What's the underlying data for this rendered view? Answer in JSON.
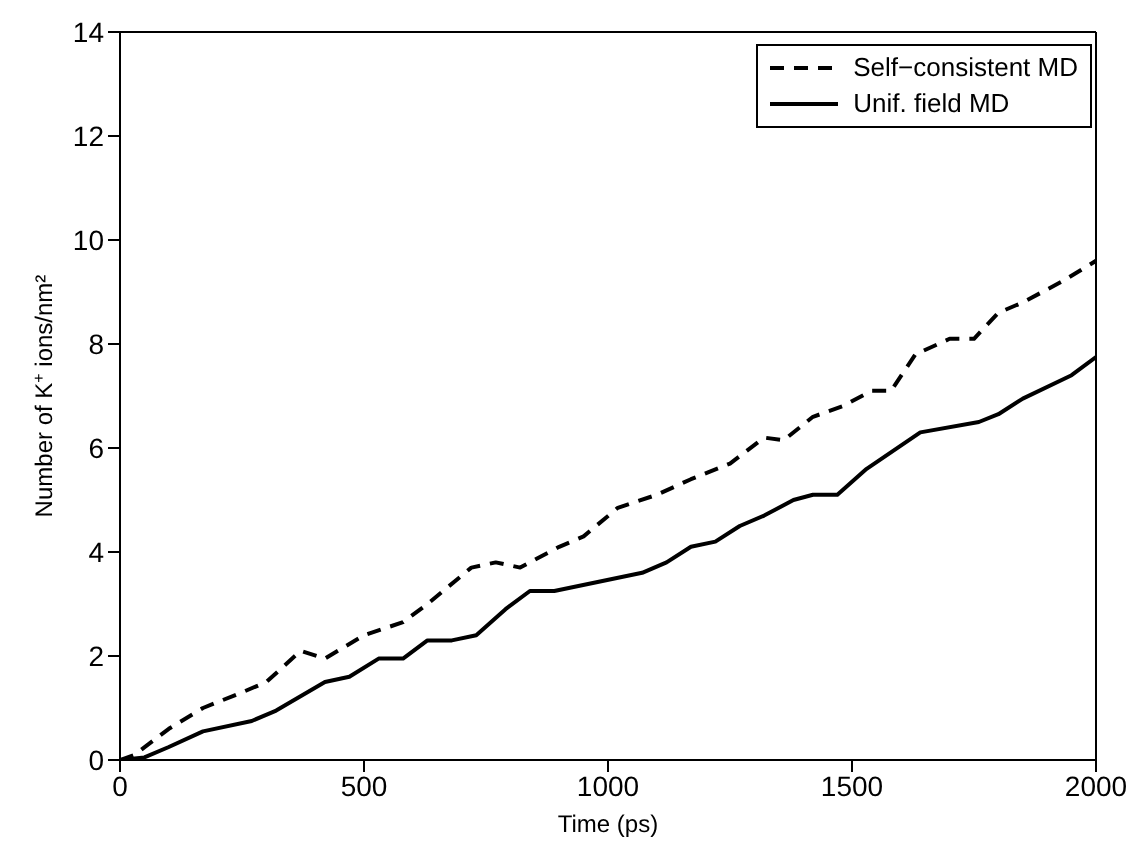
{
  "chart_data": {
    "type": "line",
    "xlabel": "Time (ps)",
    "ylabel": "Number of K$^{+}$ ions/nm²",
    "xlim": [
      0,
      2000
    ],
    "xticks": [
      0,
      500,
      1000,
      1500,
      2000
    ],
    "ylim": [
      0,
      14
    ],
    "yticks": [
      0,
      2,
      4,
      6,
      8,
      10,
      12,
      14
    ],
    "legend": "top right",
    "marker": "none",
    "series": [
      {
        "name": "Self−consistent MD",
        "color": "#000000",
        "line_style": "dashed",
        "x": [
          0,
          30,
          100,
          170,
          250,
          300,
          370,
          420,
          500,
          580,
          630,
          720,
          770,
          820,
          900,
          950,
          1020,
          1100,
          1170,
          1250,
          1320,
          1360,
          1420,
          1480,
          1540,
          1580,
          1630,
          1700,
          1750,
          1800,
          1850,
          1930,
          2000
        ],
        "values": [
          0,
          0.1,
          0.6,
          1.0,
          1.3,
          1.5,
          2.1,
          1.95,
          2.4,
          2.65,
          3.0,
          3.7,
          3.8,
          3.7,
          4.1,
          4.3,
          4.85,
          5.1,
          5.4,
          5.7,
          6.2,
          6.15,
          6.6,
          6.8,
          7.1,
          7.1,
          7.8,
          8.1,
          8.1,
          8.6,
          8.8,
          9.2,
          9.6
        ]
      },
      {
        "name": "Unif. field MD",
        "color": "#000000",
        "line_style": "solid",
        "x": [
          0,
          50,
          100,
          170,
          270,
          320,
          420,
          470,
          530,
          580,
          630,
          680,
          730,
          790,
          840,
          890,
          1070,
          1120,
          1170,
          1220,
          1270,
          1320,
          1380,
          1420,
          1470,
          1530,
          1640,
          1760,
          1800,
          1850,
          1950,
          2000
        ],
        "values": [
          0,
          0.05,
          0.25,
          0.55,
          0.75,
          0.95,
          1.5,
          1.6,
          1.95,
          1.95,
          2.3,
          2.3,
          2.4,
          2.9,
          3.25,
          3.25,
          3.6,
          3.8,
          4.1,
          4.2,
          4.5,
          4.7,
          5.0,
          5.1,
          5.1,
          5.6,
          6.3,
          6.5,
          6.65,
          6.95,
          7.4,
          7.75
        ]
      }
    ]
  }
}
